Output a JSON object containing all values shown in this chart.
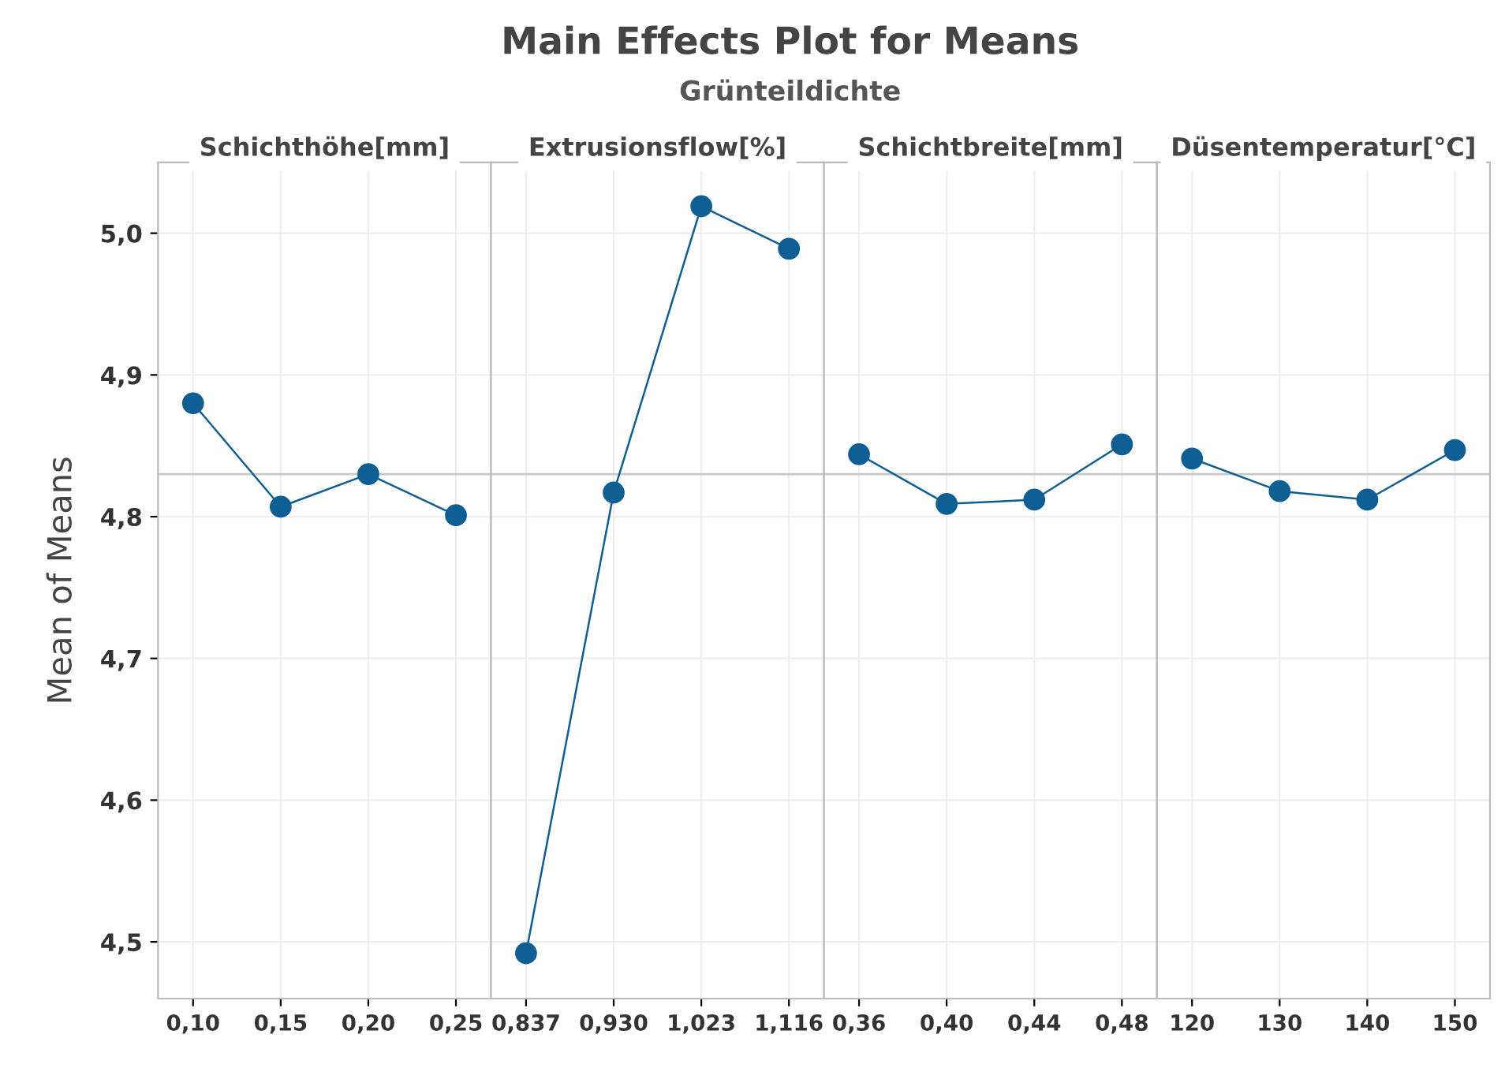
{
  "chart_data": [
    {
      "type": "other",
      "title": "Main Effects Plot for Means",
      "subtitle": "Grünteildichte"
    },
    {
      "type": "line",
      "title": "Schichthöhe[mm]",
      "ylabel": "Mean of Means",
      "categories": [
        "0,10",
        "0,15",
        "0,20",
        "0,25"
      ],
      "series": [
        {
          "color": "#0f5e94",
          "values": [
            4.88,
            4.807,
            4.83,
            4.801
          ]
        }
      ],
      "ylim": [
        4.46,
        5.05
      ],
      "yticks": [
        {
          "value": 4.5,
          "label": "4,5"
        },
        {
          "value": 4.6,
          "label": "4,6"
        },
        {
          "value": 4.7,
          "label": "4,7"
        },
        {
          "value": 4.8,
          "label": "4,8"
        },
        {
          "value": 4.9,
          "label": "4,9"
        },
        {
          "value": 5.0,
          "label": "5,0"
        }
      ],
      "ref_lines": [
        {
          "axis": "y",
          "value": 4.83,
          "color": "#c8c8c8"
        }
      ],
      "grid": true,
      "marker": "circle",
      "line_style": "solid"
    },
    {
      "type": "line",
      "title": "Extrusionsflow[%]",
      "categories": [
        "0,837",
        "0,930",
        "1,023",
        "1,116"
      ],
      "series": [
        {
          "color": "#0f5e94",
          "values": [
            4.492,
            4.817,
            5.019,
            4.989
          ]
        }
      ],
      "ylim": [
        4.46,
        5.05
      ],
      "yticks": [
        4.5,
        4.6,
        4.7,
        4.8,
        4.9,
        5.0
      ],
      "tick_labels": "x",
      "ref_lines": [
        {
          "axis": "y",
          "value": 4.83,
          "color": "#c8c8c8"
        }
      ],
      "grid": true,
      "marker": "circle",
      "line_style": "solid"
    },
    {
      "type": "line",
      "title": "Schichtbreite[mm]",
      "categories": [
        "0,36",
        "0,40",
        "0,44",
        "0,48"
      ],
      "series": [
        {
          "color": "#0f5e94",
          "values": [
            4.844,
            4.809,
            4.812,
            4.851
          ]
        }
      ],
      "ylim": [
        4.46,
        5.05
      ],
      "yticks": [
        4.5,
        4.6,
        4.7,
        4.8,
        4.9,
        5.0
      ],
      "tick_labels": "x",
      "ref_lines": [
        {
          "axis": "y",
          "value": 4.83,
          "color": "#c8c8c8"
        }
      ],
      "grid": true,
      "marker": "circle",
      "line_style": "solid"
    },
    {
      "type": "line",
      "title": "Düsentemperatur[°C]",
      "categories": [
        "120",
        "130",
        "140",
        "150"
      ],
      "series": [
        {
          "color": "#0f5e94",
          "values": [
            4.841,
            4.818,
            4.812,
            4.847
          ]
        }
      ],
      "ylim": [
        4.46,
        5.05
      ],
      "yticks": [
        4.5,
        4.6,
        4.7,
        4.8,
        4.9,
        5.0
      ],
      "tick_labels": "x",
      "ref_lines": [
        {
          "axis": "y",
          "value": 4.83,
          "color": "#c8c8c8"
        }
      ],
      "grid": true,
      "marker": "circle",
      "line_style": "solid"
    }
  ]
}
